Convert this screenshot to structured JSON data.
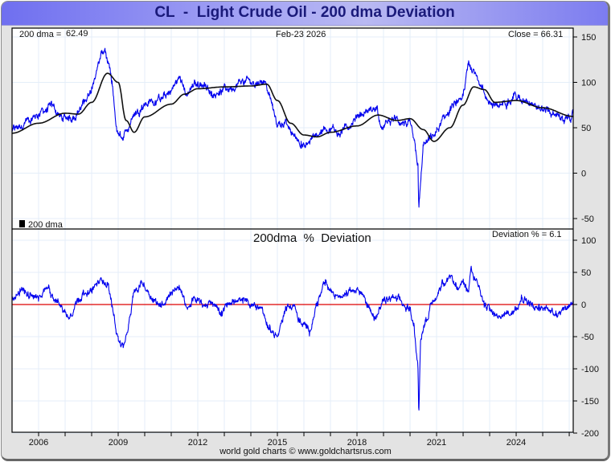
{
  "title": "CL  -  Light Crude Oil - 200 dma Deviation",
  "footer": "world gold charts © www.goldchartsrus.com",
  "colors": {
    "price": "#0000ee",
    "dma": "#111111",
    "deviation": "#0000ee",
    "zero_line": "#dd0000",
    "grid": "#e4eef8",
    "title_text": "#1a1a7a"
  },
  "upper_panel": {
    "dma_label": "200 dma =",
    "dma_value": "62.49",
    "date": "Feb-23  2026",
    "close_label": "Close = 66.31",
    "legend": "200 dma"
  },
  "lower_panel": {
    "title": "200dma  %  Deviation",
    "deviation_label": "Deviation % = 6.1"
  },
  "chart_data": [
    {
      "type": "line",
      "title": "CL - Light Crude Oil",
      "xlabel": "",
      "ylabel": "",
      "xlim": [
        2005.0,
        2026.15
      ],
      "ylim": [
        -55,
        158
      ],
      "yticks": [
        150,
        100,
        50,
        0,
        -50
      ],
      "xticks": [
        "2006",
        "2009",
        "2012",
        "2015",
        "2018",
        "2021",
        "2024"
      ],
      "grid": true,
      "legend": "bottom-left",
      "series": [
        {
          "name": "Close",
          "x": [
            2005.0,
            2005.5,
            2006.0,
            2006.5,
            2006.9,
            2007.3,
            2007.7,
            2008.0,
            2008.3,
            2008.5,
            2008.75,
            2008.95,
            2009.2,
            2009.5,
            2009.9,
            2010.4,
            2010.9,
            2011.3,
            2011.6,
            2011.9,
            2012.3,
            2012.5,
            2012.8,
            2013.2,
            2013.7,
            2014.0,
            2014.5,
            2014.8,
            2015.0,
            2015.3,
            2015.6,
            2015.9,
            2016.05,
            2016.4,
            2016.8,
            2017.2,
            2017.5,
            2017.9,
            2018.3,
            2018.75,
            2018.95,
            2019.3,
            2019.8,
            2020.0,
            2020.2,
            2020.3,
            2020.33,
            2020.5,
            2020.9,
            2021.3,
            2021.8,
            2022.0,
            2022.2,
            2022.45,
            2022.7,
            2023.0,
            2023.3,
            2023.7,
            2023.9,
            2024.2,
            2024.6,
            2024.9,
            2025.2,
            2025.5,
            2025.8,
            2026.15
          ],
          "y": [
            46,
            57,
            65,
            73,
            60,
            63,
            76,
            95,
            125,
            138,
            100,
            45,
            40,
            60,
            75,
            80,
            86,
            105,
            85,
            98,
            98,
            85,
            90,
            93,
            102,
            100,
            102,
            75,
            50,
            58,
            42,
            35,
            28,
            42,
            50,
            48,
            48,
            60,
            67,
            72,
            50,
            60,
            56,
            58,
            25,
            10,
            -40,
            30,
            40,
            60,
            80,
            85,
            120,
            110,
            92,
            78,
            73,
            82,
            88,
            78,
            78,
            70,
            68,
            62,
            58,
            66
          ]
        },
        {
          "name": "200 dma",
          "x": [
            2005.0,
            2006.0,
            2007.0,
            2007.5,
            2008.0,
            2008.6,
            2009.0,
            2009.3,
            2009.6,
            2010.0,
            2011.0,
            2011.5,
            2012.0,
            2013.0,
            2014.0,
            2014.6,
            2015.0,
            2015.5,
            2016.0,
            2016.5,
            2017.0,
            2018.0,
            2018.8,
            2019.5,
            2020.0,
            2020.5,
            2020.9,
            2021.5,
            2022.0,
            2022.4,
            2022.8,
            2023.2,
            2024.0,
            2025.0,
            2026.15
          ],
          "y": [
            44,
            55,
            66,
            65,
            78,
            110,
            100,
            58,
            45,
            62,
            76,
            87,
            93,
            95,
            96,
            98,
            80,
            55,
            42,
            40,
            45,
            52,
            64,
            58,
            60,
            48,
            35,
            50,
            75,
            95,
            92,
            78,
            80,
            72,
            62.5
          ]
        }
      ]
    },
    {
      "type": "line",
      "title": "200dma  %  Deviation",
      "xlabel": "",
      "ylabel": "",
      "xlim": [
        2005.0,
        2026.15
      ],
      "ylim": [
        -200,
        108
      ],
      "yticks": [
        100,
        50,
        0,
        -50,
        -100,
        -150,
        -200
      ],
      "xticks": [
        "2006",
        "2009",
        "2012",
        "2015",
        "2018",
        "2021",
        "2024"
      ],
      "grid": true,
      "reference_line": 0,
      "series": [
        {
          "name": "Deviation %",
          "x": [
            2005.0,
            2005.3,
            2005.6,
            2006.0,
            2006.4,
            2006.8,
            2007.1,
            2007.5,
            2008.0,
            2008.4,
            2008.6,
            2008.8,
            2009.0,
            2009.2,
            2009.4,
            2009.6,
            2009.9,
            2010.3,
            2010.6,
            2010.9,
            2011.3,
            2011.6,
            2011.9,
            2012.2,
            2012.5,
            2012.9,
            2013.3,
            2013.7,
            2014.0,
            2014.4,
            2014.7,
            2015.0,
            2015.3,
            2015.6,
            2015.9,
            2016.2,
            2016.5,
            2016.8,
            2017.2,
            2017.6,
            2018.0,
            2018.4,
            2018.75,
            2019.0,
            2019.4,
            2019.8,
            2020.0,
            2020.15,
            2020.25,
            2020.3,
            2020.33,
            2020.4,
            2020.6,
            2020.9,
            2021.2,
            2021.5,
            2021.8,
            2022.0,
            2022.2,
            2022.3,
            2022.5,
            2022.8,
            2023.0,
            2023.3,
            2023.6,
            2023.9,
            2024.2,
            2024.6,
            2024.9,
            2025.2,
            2025.5,
            2025.8,
            2026.15
          ],
          "y": [
            5,
            25,
            20,
            5,
            25,
            0,
            -20,
            10,
            25,
            38,
            30,
            -10,
            -50,
            -65,
            -30,
            20,
            35,
            10,
            0,
            15,
            30,
            -5,
            10,
            -2,
            5,
            -10,
            8,
            2,
            -2,
            -5,
            -40,
            -50,
            -10,
            0,
            -30,
            -40,
            5,
            30,
            15,
            22,
            25,
            0,
            -20,
            5,
            10,
            -2,
            -5,
            -30,
            -80,
            -100,
            -175,
            -50,
            -20,
            5,
            35,
            45,
            25,
            40,
            20,
            60,
            40,
            -5,
            -10,
            -20,
            -15,
            -10,
            15,
            0,
            -5,
            -5,
            -10,
            -5,
            6.1
          ]
        }
      ]
    }
  ]
}
